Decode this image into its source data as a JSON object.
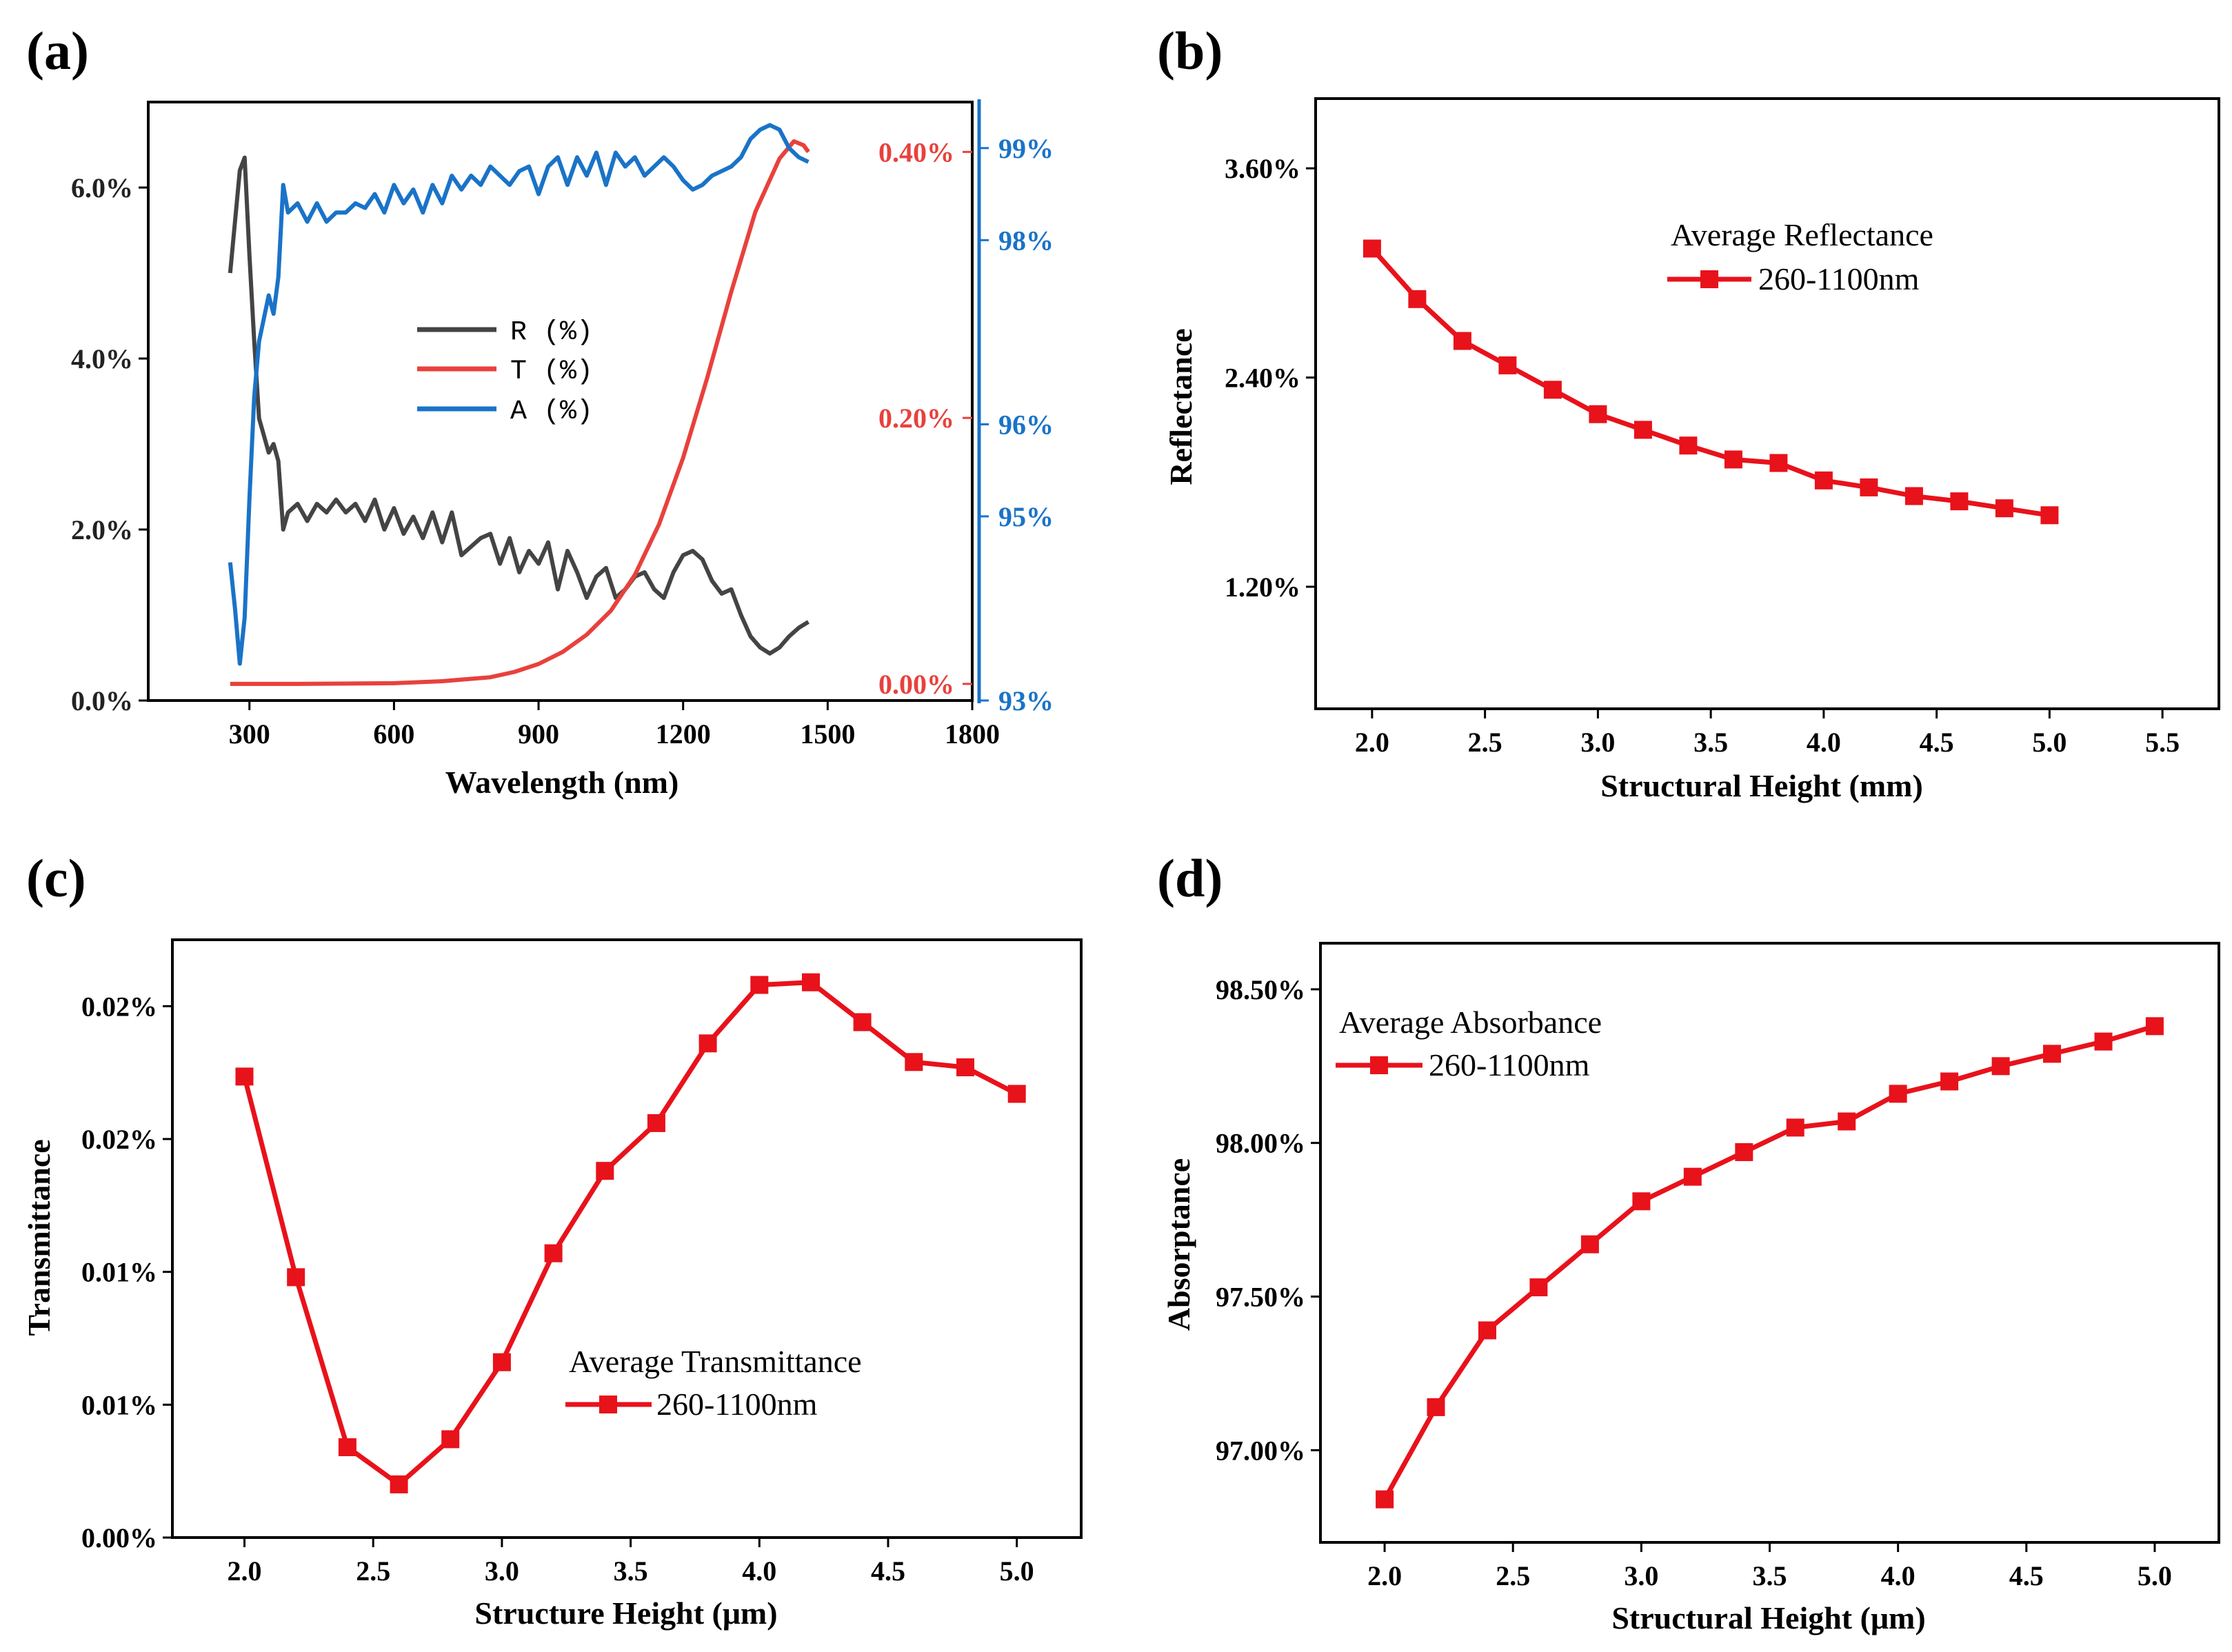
{
  "chart_data": [
    {
      "panel": "(a)",
      "type": "line",
      "xlabel": "Wavelength (nm)",
      "xlim": [
        90,
        1800
      ],
      "xticks": [
        300,
        600,
        900,
        1200,
        1500,
        1800
      ],
      "axes": {
        "left": {
          "lim": [
            0,
            7.0
          ],
          "ticks": [
            0,
            2,
            4,
            6
          ],
          "tick_labels": [
            "0.0%",
            "2.0%",
            "4.0%",
            "6.0%"
          ],
          "color": "#333333"
        },
        "right_red": {
          "lim": [
            -0.0125,
            0.4375
          ],
          "ticks": [
            0,
            0.2,
            0.4
          ],
          "tick_labels": [
            "0.00%",
            "0.20%",
            "0.40%"
          ],
          "color": "#e8413c"
        },
        "right_blue": {
          "lim": [
            93,
            99.5
          ],
          "ticks": [
            93,
            95,
            96,
            98,
            99
          ],
          "tick_labels": [
            "93%",
            "95%",
            "96%",
            "98%",
            "99%"
          ],
          "color": "#1a73c8"
        }
      },
      "legend": {
        "placement": "center-left",
        "entries": [
          "R (%)",
          "T (%)",
          "A (%)"
        ]
      },
      "series": [
        {
          "name": "R (%)",
          "axis": "left",
          "color": "#444444",
          "x": [
            260,
            270,
            280,
            290,
            300,
            310,
            320,
            340,
            350,
            360,
            370,
            380,
            400,
            420,
            440,
            460,
            480,
            500,
            520,
            540,
            560,
            580,
            600,
            620,
            640,
            660,
            680,
            700,
            720,
            740,
            760,
            780,
            800,
            820,
            840,
            860,
            880,
            900,
            920,
            940,
            960,
            980,
            1000,
            1020,
            1040,
            1060,
            1080,
            1100,
            1120,
            1140,
            1160,
            1180,
            1200,
            1220,
            1240,
            1260,
            1280,
            1300,
            1320,
            1340,
            1360,
            1380,
            1400,
            1420,
            1440,
            1460
          ],
          "values": [
            5.0,
            5.6,
            6.2,
            6.35,
            5.2,
            4.2,
            3.3,
            2.9,
            3.0,
            2.8,
            2.0,
            2.2,
            2.3,
            2.1,
            2.3,
            2.2,
            2.35,
            2.2,
            2.3,
            2.1,
            2.35,
            2.0,
            2.25,
            1.95,
            2.15,
            1.9,
            2.2,
            1.85,
            2.2,
            1.7,
            1.8,
            1.9,
            1.95,
            1.6,
            1.9,
            1.5,
            1.75,
            1.6,
            1.85,
            1.3,
            1.75,
            1.5,
            1.2,
            1.45,
            1.55,
            1.2,
            1.3,
            1.45,
            1.5,
            1.3,
            1.2,
            1.5,
            1.7,
            1.75,
            1.65,
            1.4,
            1.25,
            1.3,
            1.0,
            0.75,
            0.62,
            0.55,
            0.62,
            0.75,
            0.85,
            0.92
          ]
        },
        {
          "name": "T (%)",
          "axis": "right_red",
          "color": "#e8413c",
          "x": [
            260,
            400,
            600,
            700,
            800,
            850,
            900,
            950,
            1000,
            1050,
            1100,
            1150,
            1200,
            1250,
            1300,
            1350,
            1400,
            1430,
            1450,
            1460
          ],
          "values": [
            0.0,
            0.0,
            0.0005,
            0.002,
            0.005,
            0.009,
            0.015,
            0.024,
            0.037,
            0.055,
            0.082,
            0.12,
            0.17,
            0.23,
            0.295,
            0.355,
            0.395,
            0.408,
            0.405,
            0.4
          ]
        },
        {
          "name": "A (%)",
          "axis": "right_blue",
          "color": "#1a73c8",
          "x": [
            260,
            270,
            280,
            290,
            300,
            310,
            320,
            340,
            350,
            360,
            370,
            380,
            400,
            420,
            440,
            460,
            480,
            500,
            520,
            540,
            560,
            580,
            600,
            620,
            640,
            660,
            680,
            700,
            720,
            740,
            760,
            780,
            800,
            820,
            840,
            860,
            880,
            900,
            920,
            940,
            960,
            980,
            1000,
            1020,
            1040,
            1060,
            1080,
            1100,
            1120,
            1140,
            1160,
            1180,
            1200,
            1220,
            1240,
            1260,
            1280,
            1300,
            1320,
            1340,
            1360,
            1380,
            1400,
            1420,
            1440,
            1460
          ],
          "values": [
            94.5,
            94.0,
            93.4,
            93.9,
            95.2,
            96.3,
            96.9,
            97.4,
            97.2,
            97.6,
            98.6,
            98.3,
            98.4,
            98.2,
            98.4,
            98.2,
            98.3,
            98.3,
            98.4,
            98.35,
            98.5,
            98.3,
            98.6,
            98.4,
            98.55,
            98.3,
            98.6,
            98.4,
            98.7,
            98.55,
            98.7,
            98.6,
            98.8,
            98.7,
            98.6,
            98.75,
            98.8,
            98.5,
            98.8,
            98.9,
            98.6,
            98.9,
            98.7,
            98.95,
            98.6,
            98.95,
            98.8,
            98.9,
            98.7,
            98.8,
            98.9,
            98.8,
            98.65,
            98.55,
            98.6,
            98.7,
            98.75,
            98.8,
            98.9,
            99.1,
            99.2,
            99.25,
            99.2,
            99.0,
            98.9,
            98.85
          ]
        }
      ]
    },
    {
      "panel": "(b)",
      "type": "line",
      "xlabel": "Structural Height (mm)",
      "ylabel": "Reflectance",
      "xlim": [
        1.75,
        5.75
      ],
      "xticks": [
        2.0,
        2.5,
        3.0,
        3.5,
        4.0,
        4.5,
        5.0,
        5.5
      ],
      "ylim": [
        0.5,
        4.0
      ],
      "yticks": [
        1.2,
        2.4,
        3.6
      ],
      "ytick_labels": [
        "1.20%",
        "2.40%",
        "3.60%"
      ],
      "legend": {
        "title": "Average Reflectance",
        "label": "260-1100nm",
        "placement": "top-right"
      },
      "color": "#e8121b",
      "x": [
        2.0,
        2.2,
        2.4,
        2.6,
        2.8,
        3.0,
        3.2,
        3.4,
        3.6,
        3.8,
        4.0,
        4.2,
        4.4,
        4.6,
        4.8,
        5.0
      ],
      "values": [
        3.14,
        2.85,
        2.61,
        2.47,
        2.33,
        2.19,
        2.1,
        2.01,
        1.93,
        1.91,
        1.81,
        1.77,
        1.72,
        1.69,
        1.65,
        1.61
      ]
    },
    {
      "panel": "(c)",
      "type": "line",
      "xlabel": "Structure Height (μm)",
      "ylabel": "Transmittance",
      "xlim": [
        1.72,
        5.25
      ],
      "xticks": [
        2.0,
        2.5,
        3.0,
        3.5,
        4.0,
        4.5,
        5.0
      ],
      "ylim": [
        0.0,
        0.0225
      ],
      "yticks": [
        0.0,
        0.005,
        0.01,
        0.015,
        0.02
      ],
      "ytick_labels": [
        "0.00%",
        "0.01%",
        "0.01%",
        "0.02%",
        "0.02%"
      ],
      "legend": {
        "title": "Average Transmittance",
        "label": "260-1100nm",
        "placement": "lower-center"
      },
      "color": "#e8121b",
      "x": [
        2.0,
        2.2,
        2.4,
        2.6,
        2.8,
        3.0,
        3.2,
        3.4,
        3.6,
        3.8,
        4.0,
        4.2,
        4.4,
        4.6,
        4.8,
        5.0
      ],
      "values": [
        0.01735,
        0.0098,
        0.0034,
        0.002,
        0.0037,
        0.0066,
        0.0107,
        0.0138,
        0.0156,
        0.0186,
        0.0208,
        0.0209,
        0.0194,
        0.0179,
        0.0177,
        0.0167
      ]
    },
    {
      "panel": "(d)",
      "type": "line",
      "xlabel": "Structural Height (μm)",
      "ylabel": "Absorptance",
      "xlim": [
        1.75,
        5.25
      ],
      "xticks": [
        2.0,
        2.5,
        3.0,
        3.5,
        4.0,
        4.5,
        5.0
      ],
      "ylim": [
        96.7,
        98.65
      ],
      "yticks": [
        97.0,
        97.5,
        98.0,
        98.5
      ],
      "ytick_labels": [
        "97.00%",
        "97.50%",
        "98.00%",
        "98.50%"
      ],
      "legend": {
        "title": "Average Absorbance",
        "label": "260-1100nm",
        "placement": "top-left"
      },
      "color": "#e8121b",
      "x": [
        2.0,
        2.2,
        2.4,
        2.6,
        2.8,
        3.0,
        3.2,
        3.4,
        3.6,
        3.8,
        4.0,
        4.2,
        4.4,
        4.6,
        4.8,
        5.0
      ],
      "values": [
        96.84,
        97.14,
        97.39,
        97.53,
        97.67,
        97.81,
        97.89,
        97.97,
        98.05,
        98.07,
        98.16,
        98.2,
        98.25,
        98.29,
        98.33,
        98.38
      ]
    }
  ]
}
